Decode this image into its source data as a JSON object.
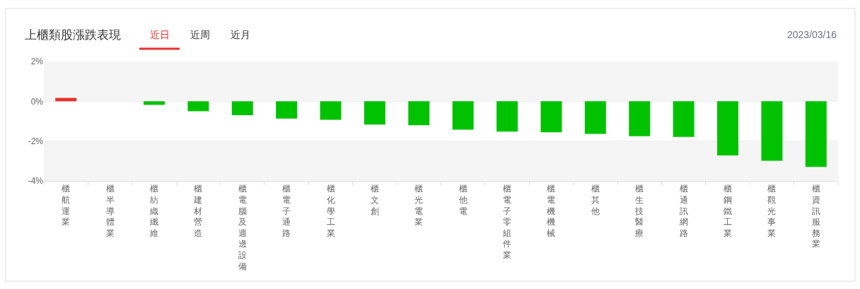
{
  "chart_data": {
    "type": "bar",
    "title": "上櫃類股漲跌表現",
    "subtitle": "2023/03/16",
    "annotations": [
      "近日",
      "近周",
      "近月"
    ],
    "categories": [
      "櫃航運業",
      "櫃半導體業",
      "櫃紡織纖維",
      "櫃建材營造",
      "櫃電腦及週邊設備",
      "櫃電子通路",
      "櫃化學工業",
      "櫃文創",
      "櫃光電業",
      "櫃他電",
      "櫃電子零組件業",
      "櫃電機機械",
      "櫃其他",
      "櫃生技醫療",
      "櫃通訊網路",
      "櫃鋼鐵工業",
      "櫃觀光事業",
      "櫃資訊服務業"
    ],
    "values": [
      0.17,
      0,
      -0.18,
      -0.5,
      -0.7,
      -0.87,
      -0.93,
      -1.17,
      -1.2,
      -1.43,
      -1.52,
      -1.56,
      -1.64,
      -1.75,
      -1.79,
      -2.72,
      -2.99,
      -3.3
    ],
    "colors": [
      "#e8312f",
      "#00c200",
      "#00c200",
      "#00c200",
      "#00c200",
      "#00c200",
      "#00c200",
      "#00c200",
      "#00c200",
      "#00c200",
      "#00c200",
      "#00c200",
      "#00c200",
      "#00c200",
      "#00c200",
      "#00c200",
      "#00c200",
      "#00c200"
    ],
    "ylim": [
      -4,
      2
    ],
    "yticks": [
      {
        "value": 2,
        "label": "2%"
      },
      {
        "value": 0,
        "label": "0%"
      },
      {
        "value": -2,
        "label": "-2%"
      },
      {
        "value": -4,
        "label": "-4%"
      }
    ],
    "bands": [
      {
        "axis": "y",
        "from": 0,
        "to": 2,
        "color": "#f5f5f5"
      },
      {
        "axis": "y",
        "from": -4,
        "to": -2,
        "color": "#f5f5f5"
      }
    ],
    "grid": "y"
  }
}
